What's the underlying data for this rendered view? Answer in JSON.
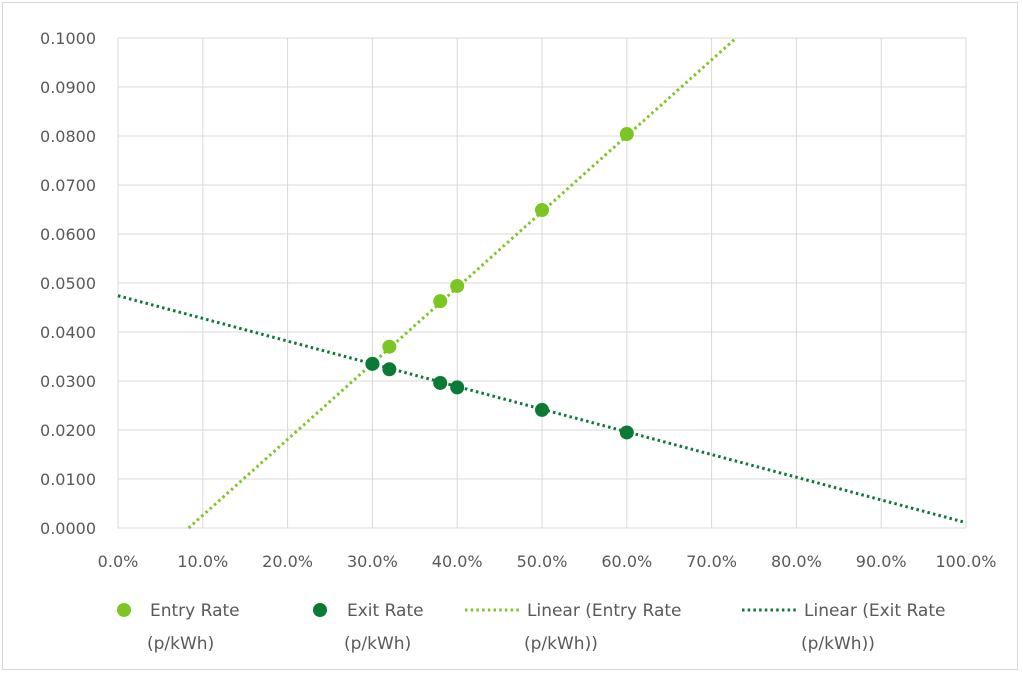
{
  "chart_data": {
    "type": "scatter",
    "title": "",
    "xlabel": "",
    "ylabel": "",
    "xlim": [
      0,
      1
    ],
    "ylim": [
      0,
      0.1
    ],
    "x_ticks": [
      0,
      0.1,
      0.2,
      0.3,
      0.4,
      0.5,
      0.6,
      0.7,
      0.8,
      0.9,
      1.0
    ],
    "x_tick_labels": [
      "0.0%",
      "10.0%",
      "20.0%",
      "30.0%",
      "40.0%",
      "50.0%",
      "60.0%",
      "70.0%",
      "80.0%",
      "90.0%",
      "100.0%"
    ],
    "y_ticks": [
      0,
      0.01,
      0.02,
      0.03,
      0.04,
      0.05,
      0.06,
      0.07,
      0.08,
      0.09,
      0.1
    ],
    "y_tick_labels": [
      "0.0000",
      "0.0100",
      "0.0200",
      "0.0300",
      "0.0400",
      "0.0500",
      "0.0600",
      "0.0700",
      "0.0800",
      "0.0900",
      "0.1000"
    ],
    "grid": true,
    "legend_position": "bottom",
    "series": [
      {
        "name": "Entry Rate (p/kWh)",
        "kind": "points",
        "color": "#7cc623",
        "x": [
          0.3,
          0.32,
          0.38,
          0.4,
          0.5,
          0.6
        ],
        "y": [
          0.0335,
          0.037,
          0.0463,
          0.0494,
          0.0649,
          0.0804
        ]
      },
      {
        "name": "Exit Rate (p/kWh)",
        "kind": "points",
        "color": "#0a7a34",
        "x": [
          0.3,
          0.32,
          0.38,
          0.4,
          0.5,
          0.6
        ],
        "y": [
          0.0335,
          0.0324,
          0.0296,
          0.0287,
          0.0241,
          0.0195
        ]
      },
      {
        "name": "Linear (Entry Rate (p/kWh))",
        "kind": "trendline",
        "color": "#7cc623",
        "slope": 0.1549,
        "intercept": -0.0129
      },
      {
        "name": "Linear (Exit Rate (p/kWh))",
        "kind": "trendline",
        "color": "#0a7a34",
        "slope": -0.0463,
        "intercept": 0.0474
      }
    ],
    "legend": [
      {
        "line1": "Entry Rate",
        "line2": "(p/kWh)",
        "marker": "dot",
        "color": "#7cc623"
      },
      {
        "line1": "Exit Rate",
        "line2": "(p/kWh)",
        "marker": "dot",
        "color": "#0a7a34"
      },
      {
        "line1": "Linear (Entry Rate",
        "line2": "(p/kWh))",
        "marker": "dotted-line",
        "color": "#7cc623"
      },
      {
        "line1": "Linear (Exit Rate",
        "line2": "(p/kWh))",
        "marker": "dotted-line",
        "color": "#0a7a34"
      }
    ]
  }
}
